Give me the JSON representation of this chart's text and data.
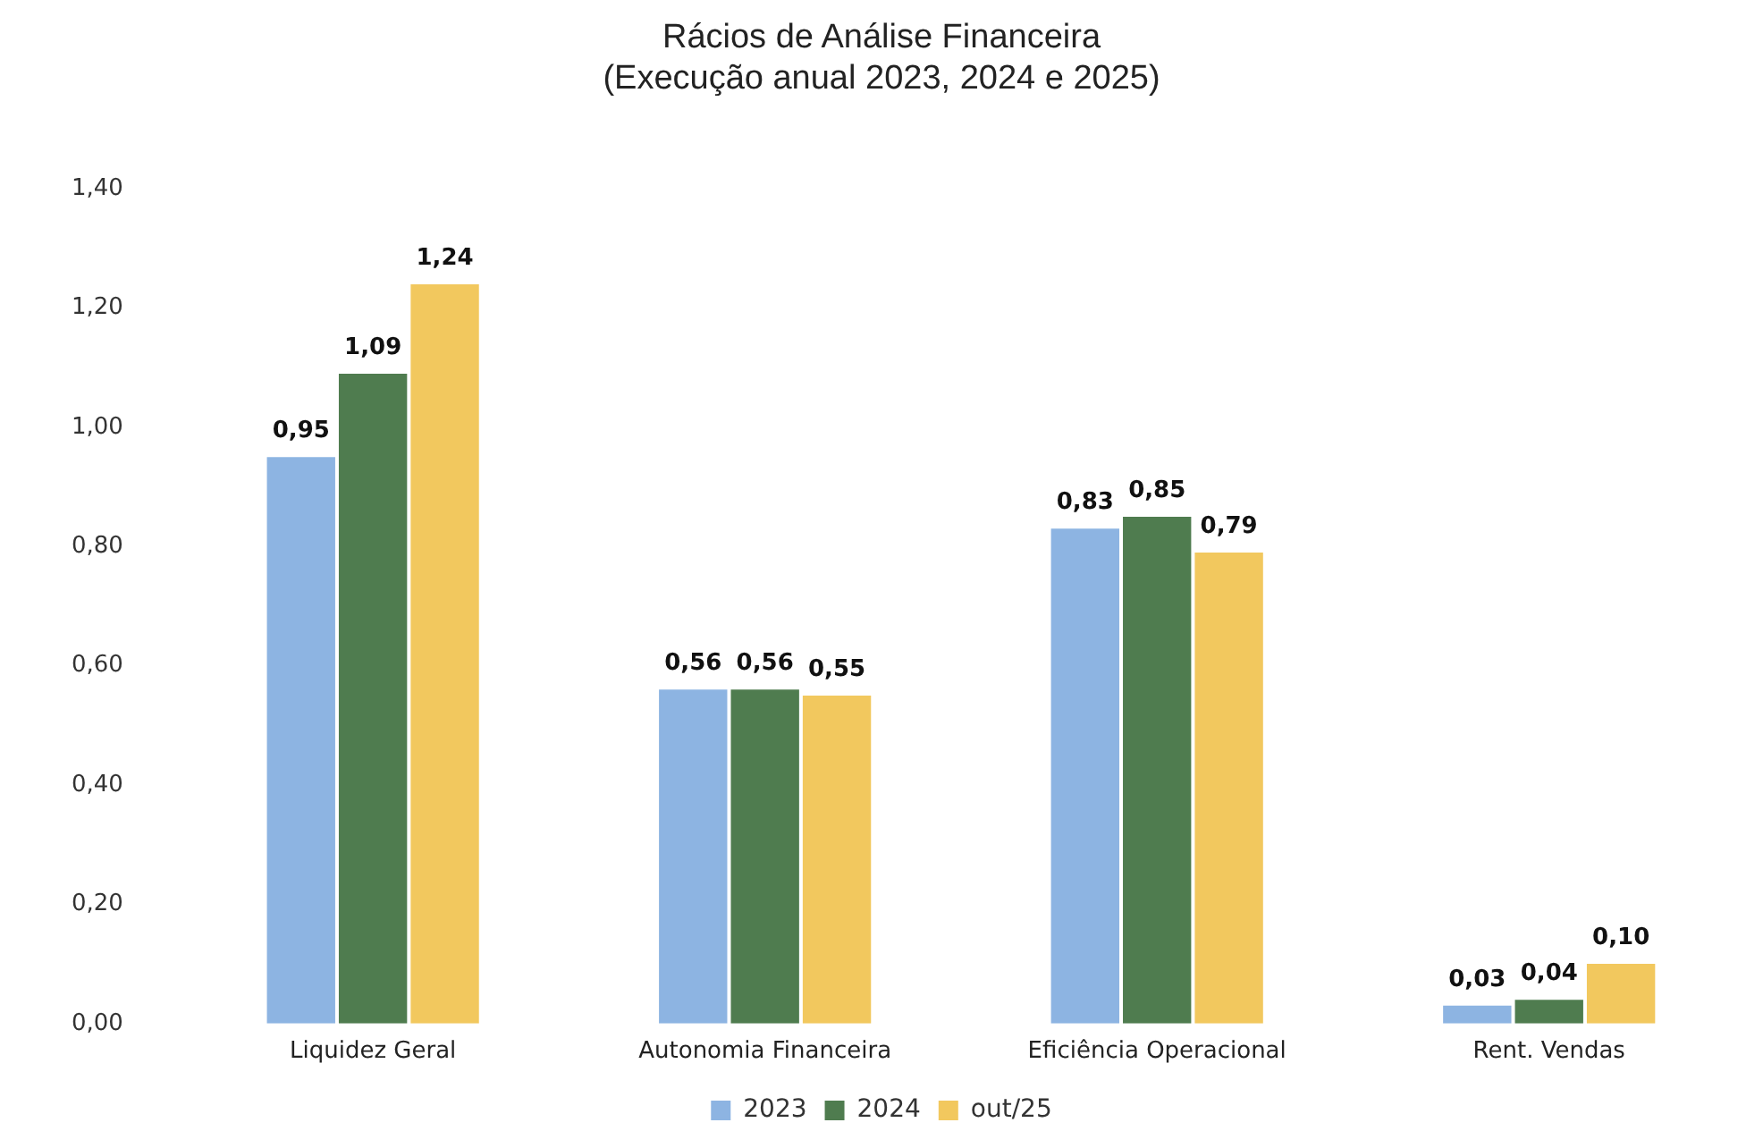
{
  "chart_data": {
    "type": "bar",
    "title": "Rácios de Análise Financeira",
    "subtitle": "(Execução anual 2023, 2024 e 2025)",
    "categories": [
      "Liquidez Geral",
      "Autonomia Financeira",
      "Eficiência Operacional",
      "Rent. Vendas"
    ],
    "series": [
      {
        "name": "2023",
        "color": "#8db4e2",
        "values": [
          0.95,
          0.56,
          0.83,
          0.03
        ],
        "value_labels": [
          "0,95",
          "0,56",
          "0,83",
          "0,03"
        ]
      },
      {
        "name": "2024",
        "color": "#4f7c4f",
        "values": [
          1.09,
          0.56,
          0.85,
          0.04
        ],
        "value_labels": [
          "1,09",
          "0,56",
          "0,85",
          "0,04"
        ]
      },
      {
        "name": "out/25",
        "color": "#f2c85e",
        "values": [
          1.24,
          0.55,
          0.79,
          0.1
        ],
        "value_labels": [
          "1,24",
          "0,55",
          "0,79",
          "0,10"
        ]
      }
    ],
    "ylim": [
      0,
      1.4
    ],
    "yticks": [
      {
        "value": 0,
        "label": "0,00"
      },
      {
        "value": 0.2,
        "label": "0,20"
      },
      {
        "value": 0.4,
        "label": "0,40"
      },
      {
        "value": 0.6,
        "label": "0,60"
      },
      {
        "value": 0.8,
        "label": "0,80"
      },
      {
        "value": 1,
        "label": "1,00"
      },
      {
        "value": 1.2,
        "label": "1,20"
      },
      {
        "value": 1.4,
        "label": "1,40"
      }
    ],
    "grid": false,
    "legend": "bottom"
  }
}
